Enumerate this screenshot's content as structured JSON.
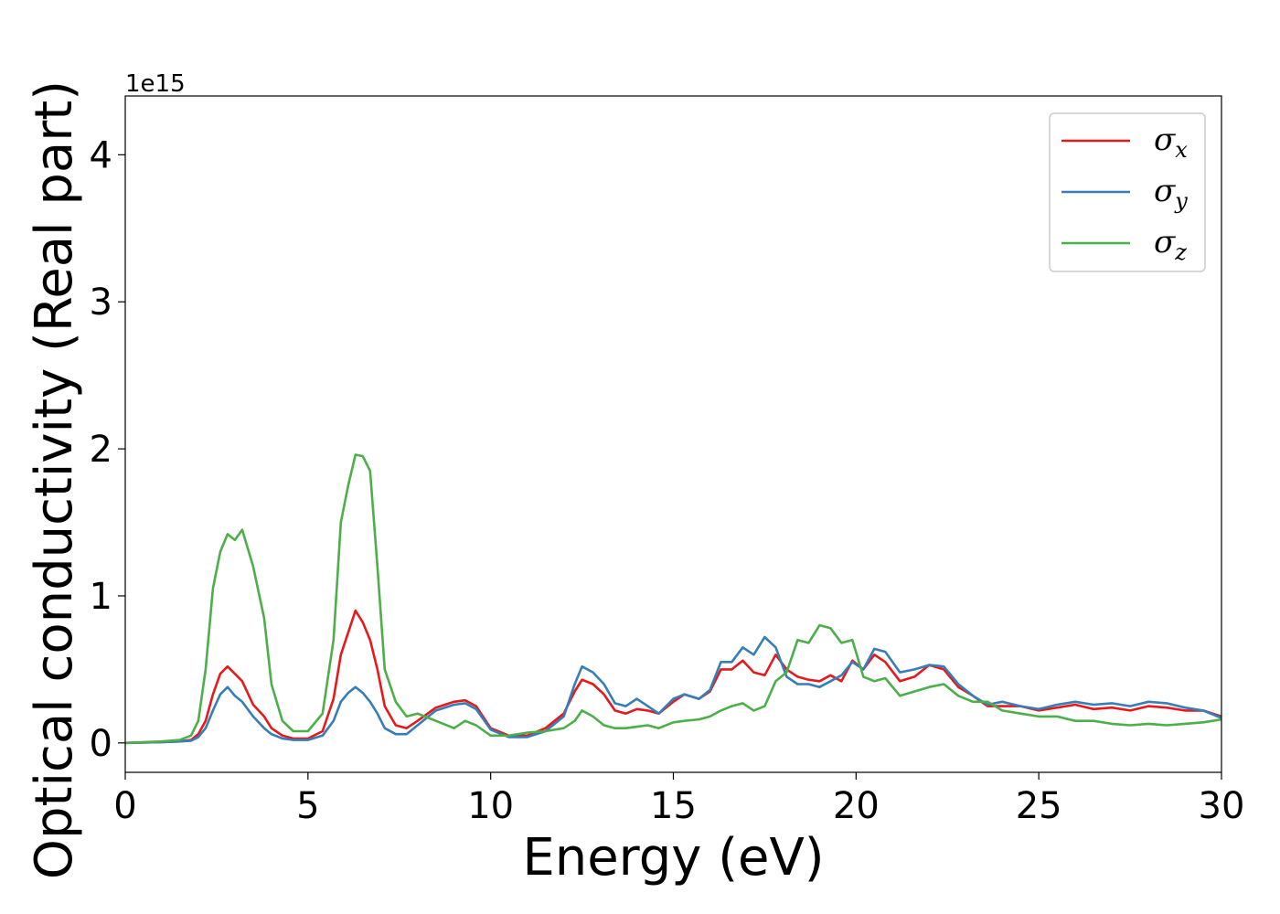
{
  "chart_data": {
    "type": "line",
    "title": "",
    "xlabel": "Energy (eV)",
    "ylabel": "Optical conductivity (Real part)",
    "y_offset_label": "1e15",
    "xlim": [
      0,
      30
    ],
    "ylim": [
      -0.2,
      4.4
    ],
    "xticks": [
      0,
      5,
      10,
      15,
      20,
      25,
      30
    ],
    "yticks": [
      0,
      1,
      2,
      3,
      4
    ],
    "xtick_labels": [
      "0",
      "5",
      "10",
      "15",
      "20",
      "25",
      "30"
    ],
    "ytick_labels": [
      "0",
      "1",
      "2",
      "3",
      "4"
    ],
    "grid": false,
    "legend_position": "top-right",
    "x": [
      0,
      1,
      1.5,
      1.8,
      2.0,
      2.2,
      2.4,
      2.6,
      2.8,
      3.0,
      3.2,
      3.5,
      3.8,
      4.0,
      4.3,
      4.6,
      5.0,
      5.4,
      5.7,
      5.9,
      6.1,
      6.3,
      6.5,
      6.7,
      6.9,
      7.1,
      7.4,
      7.7,
      8.0,
      8.5,
      9.0,
      9.3,
      9.6,
      10.0,
      10.5,
      11.0,
      11.5,
      12.0,
      12.3,
      12.5,
      12.8,
      13.1,
      13.4,
      13.7,
      14.0,
      14.3,
      14.6,
      15.0,
      15.3,
      15.7,
      16.0,
      16.3,
      16.6,
      16.9,
      17.2,
      17.5,
      17.8,
      18.1,
      18.4,
      18.7,
      19.0,
      19.3,
      19.6,
      19.9,
      20.2,
      20.5,
      20.8,
      21.2,
      21.6,
      22.0,
      22.4,
      22.8,
      23.2,
      23.6,
      24.0,
      24.5,
      25.0,
      25.5,
      26.0,
      26.5,
      27.0,
      27.5,
      28.0,
      28.5,
      29.0,
      29.5,
      30.0
    ],
    "series": [
      {
        "name": "σx",
        "label_main": "σ",
        "label_sub": "x",
        "color": "#e41a1c",
        "values": [
          0,
          0.005,
          0.01,
          0.02,
          0.06,
          0.15,
          0.33,
          0.47,
          0.52,
          0.47,
          0.42,
          0.26,
          0.18,
          0.1,
          0.05,
          0.03,
          0.03,
          0.08,
          0.3,
          0.6,
          0.75,
          0.9,
          0.82,
          0.7,
          0.5,
          0.25,
          0.12,
          0.1,
          0.15,
          0.24,
          0.28,
          0.29,
          0.25,
          0.1,
          0.05,
          0.05,
          0.1,
          0.2,
          0.35,
          0.43,
          0.4,
          0.33,
          0.22,
          0.2,
          0.23,
          0.22,
          0.2,
          0.28,
          0.33,
          0.3,
          0.35,
          0.5,
          0.5,
          0.56,
          0.48,
          0.46,
          0.6,
          0.5,
          0.45,
          0.43,
          0.42,
          0.46,
          0.42,
          0.56,
          0.5,
          0.6,
          0.55,
          0.42,
          0.45,
          0.53,
          0.5,
          0.38,
          0.32,
          0.25,
          0.25,
          0.25,
          0.22,
          0.24,
          0.26,
          0.23,
          0.24,
          0.22,
          0.25,
          0.24,
          0.22,
          0.22,
          0.18
        ]
      },
      {
        "name": "σy",
        "label_main": "σ",
        "label_sub": "y",
        "color": "#377eb8",
        "values": [
          0,
          0.005,
          0.01,
          0.015,
          0.04,
          0.1,
          0.22,
          0.33,
          0.38,
          0.32,
          0.28,
          0.18,
          0.1,
          0.06,
          0.03,
          0.02,
          0.02,
          0.05,
          0.15,
          0.28,
          0.34,
          0.38,
          0.34,
          0.28,
          0.2,
          0.1,
          0.06,
          0.06,
          0.12,
          0.22,
          0.26,
          0.27,
          0.23,
          0.09,
          0.04,
          0.04,
          0.08,
          0.18,
          0.4,
          0.52,
          0.48,
          0.4,
          0.27,
          0.25,
          0.3,
          0.25,
          0.2,
          0.3,
          0.33,
          0.3,
          0.36,
          0.55,
          0.55,
          0.65,
          0.6,
          0.72,
          0.65,
          0.45,
          0.4,
          0.4,
          0.38,
          0.42,
          0.46,
          0.55,
          0.5,
          0.64,
          0.62,
          0.48,
          0.5,
          0.53,
          0.52,
          0.4,
          0.32,
          0.26,
          0.28,
          0.25,
          0.23,
          0.26,
          0.28,
          0.26,
          0.27,
          0.25,
          0.28,
          0.27,
          0.24,
          0.22,
          0.17
        ]
      },
      {
        "name": "σz",
        "label_main": "σ",
        "label_sub": "z",
        "color": "#4daf4a",
        "values": [
          0,
          0.01,
          0.02,
          0.05,
          0.15,
          0.5,
          1.05,
          1.3,
          1.42,
          1.38,
          1.45,
          1.2,
          0.85,
          0.4,
          0.15,
          0.08,
          0.08,
          0.2,
          0.7,
          1.5,
          1.75,
          1.96,
          1.95,
          1.85,
          1.2,
          0.5,
          0.28,
          0.18,
          0.2,
          0.15,
          0.1,
          0.15,
          0.12,
          0.05,
          0.05,
          0.07,
          0.08,
          0.1,
          0.15,
          0.22,
          0.18,
          0.12,
          0.1,
          0.1,
          0.11,
          0.12,
          0.1,
          0.14,
          0.15,
          0.16,
          0.18,
          0.22,
          0.25,
          0.27,
          0.22,
          0.25,
          0.42,
          0.48,
          0.7,
          0.68,
          0.8,
          0.78,
          0.68,
          0.7,
          0.45,
          0.42,
          0.44,
          0.32,
          0.35,
          0.38,
          0.4,
          0.32,
          0.28,
          0.28,
          0.22,
          0.2,
          0.18,
          0.18,
          0.15,
          0.15,
          0.13,
          0.12,
          0.13,
          0.12,
          0.13,
          0.14,
          0.16
        ]
      }
    ]
  }
}
